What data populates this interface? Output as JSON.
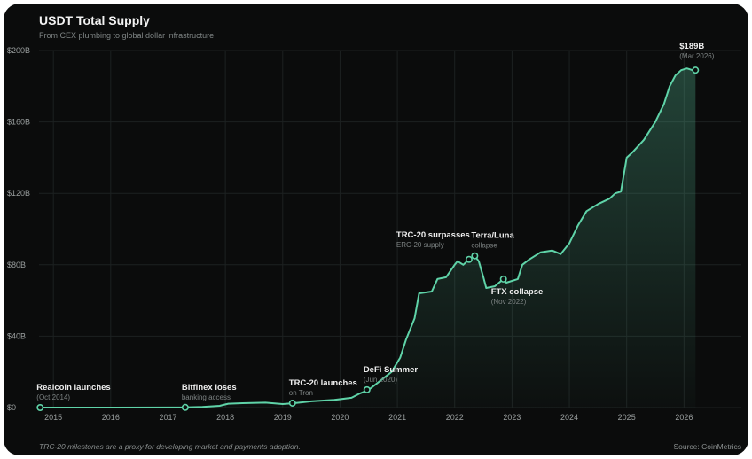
{
  "header": {
    "title": "USDT Total Supply",
    "subtitle": "From CEX plumbing to global dollar infrastructure"
  },
  "footer": {
    "note": "TRC-20 milestones are a proxy for developing market and payments adoption.",
    "source": "Source: CoinMetrics"
  },
  "colors": {
    "background": "#0b0c0c",
    "line": "#5fd3a8",
    "grid": "#1d2121",
    "marker_fill": "#0b0c0c"
  },
  "chart_data": {
    "type": "area",
    "title": "USDT Total Supply",
    "subtitle": "From CEX plumbing to global dollar infrastructure",
    "xlabel": "",
    "ylabel": "",
    "x_unit": "year",
    "xlim": [
      2014.75,
      2027.0
    ],
    "ylim": [
      0,
      200
    ],
    "x_ticks": [
      2015,
      2016,
      2017,
      2018,
      2019,
      2020,
      2021,
      2022,
      2023,
      2024,
      2025,
      2026
    ],
    "x_tick_labels": [
      "2015",
      "2016",
      "2017",
      "2018",
      "2019",
      "2020",
      "2021",
      "2022",
      "2023",
      "2024",
      "2025",
      "2026"
    ],
    "y_ticks": [
      0,
      40,
      80,
      120,
      160,
      200
    ],
    "y_tick_labels": [
      "$0",
      "$40B",
      "$80B",
      "$120B",
      "$160B",
      "$200B"
    ],
    "grid": true,
    "series": [
      {
        "values_unit": "USD billions",
        "points": [
          [
            2014.75,
            0.0
          ],
          [
            2016.0,
            0.0
          ],
          [
            2017.0,
            0.05
          ],
          [
            2017.3,
            0.1
          ],
          [
            2017.6,
            0.4
          ],
          [
            2017.9,
            1.0
          ],
          [
            2018.05,
            2.2
          ],
          [
            2018.3,
            2.5
          ],
          [
            2018.7,
            2.8
          ],
          [
            2019.0,
            2.0
          ],
          [
            2019.2,
            2.5
          ],
          [
            2019.5,
            3.5
          ],
          [
            2019.9,
            4.3
          ],
          [
            2020.2,
            5.5
          ],
          [
            2020.35,
            8.0
          ],
          [
            2020.5,
            10.0
          ],
          [
            2020.7,
            15.0
          ],
          [
            2020.9,
            20.0
          ],
          [
            2021.05,
            28.0
          ],
          [
            2021.15,
            38.0
          ],
          [
            2021.3,
            50.0
          ],
          [
            2021.38,
            64.0
          ],
          [
            2021.6,
            65.0
          ],
          [
            2021.7,
            72.0
          ],
          [
            2021.85,
            73.0
          ],
          [
            2022.0,
            80.0
          ],
          [
            2022.05,
            82.0
          ],
          [
            2022.15,
            80.0
          ],
          [
            2022.25,
            83.0
          ],
          [
            2022.35,
            85.0
          ],
          [
            2022.42,
            82.0
          ],
          [
            2022.5,
            73.0
          ],
          [
            2022.55,
            67.0
          ],
          [
            2022.7,
            68.0
          ],
          [
            2022.85,
            72.0
          ],
          [
            2022.9,
            70.0
          ],
          [
            2023.1,
            72.0
          ],
          [
            2023.18,
            80.0
          ],
          [
            2023.3,
            83.0
          ],
          [
            2023.5,
            87.0
          ],
          [
            2023.7,
            88.0
          ],
          [
            2023.85,
            86.0
          ],
          [
            2024.0,
            92.0
          ],
          [
            2024.15,
            102.0
          ],
          [
            2024.3,
            110.0
          ],
          [
            2024.5,
            114.0
          ],
          [
            2024.7,
            117.0
          ],
          [
            2024.8,
            120.0
          ],
          [
            2024.9,
            121.0
          ],
          [
            2025.0,
            140.0
          ],
          [
            2025.1,
            143.0
          ],
          [
            2025.3,
            150.0
          ],
          [
            2025.5,
            160.0
          ],
          [
            2025.65,
            170.0
          ],
          [
            2025.75,
            180.0
          ],
          [
            2025.85,
            186.0
          ],
          [
            2025.95,
            189.0
          ],
          [
            2026.05,
            190.0
          ],
          [
            2026.15,
            189.0
          ],
          [
            2026.2,
            189.0
          ]
        ]
      }
    ],
    "annotations": [
      {
        "title": "Realcoin launches",
        "subtitle": "(Oct 2014)",
        "x": 2014.77,
        "y": 0.0,
        "position": "above"
      },
      {
        "title": "Bitfinex loses",
        "subtitle": "banking access",
        "x": 2017.3,
        "y": 0.1,
        "position": "above"
      },
      {
        "title": "TRC-20 launches",
        "subtitle": "on Tron",
        "x": 2019.17,
        "y": 2.5,
        "position": "above"
      },
      {
        "title": "DeFi Summer",
        "subtitle": "(Jun 2020)",
        "x": 2020.47,
        "y": 10.0,
        "position": "above"
      },
      {
        "title": "TRC-20 surpasses",
        "subtitle": "ERC-20 supply",
        "x": 2022.25,
        "y": 83.0,
        "position": "above-left"
      },
      {
        "title": "Terra/Luna",
        "subtitle": "collapse",
        "x": 2022.35,
        "y": 85.0,
        "position": "above"
      },
      {
        "title": "FTX collapse",
        "subtitle": "(Nov 2022)",
        "x": 2022.85,
        "y": 72.0,
        "position": "below"
      },
      {
        "title": "$189B",
        "subtitle": "(Mar 2026)",
        "x": 2026.2,
        "y": 189.0,
        "position": "above"
      }
    ]
  }
}
